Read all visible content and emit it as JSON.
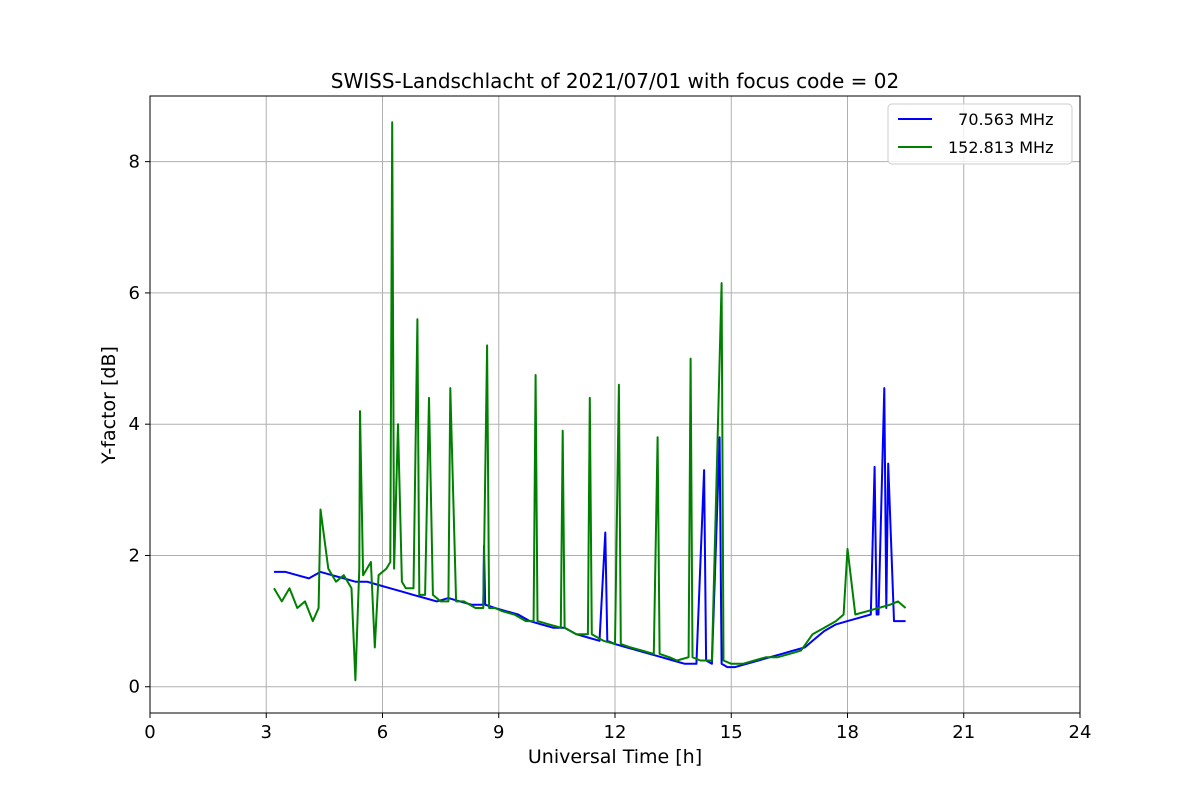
{
  "chart_data": {
    "type": "line",
    "title": "SWISS-Landschlacht of 2021/07/01 with focus code = 02",
    "xlabel": "Universal Time [h]",
    "ylabel": "Y-factor [dB]",
    "xlim": [
      0,
      24
    ],
    "ylim": [
      -0.4,
      9.0
    ],
    "xticks": [
      0,
      3,
      6,
      9,
      12,
      15,
      18,
      21,
      24
    ],
    "yticks": [
      0,
      2,
      4,
      6,
      8
    ],
    "grid": true,
    "legend_position": "top-right",
    "series": [
      {
        "name": "  70.563 MHz",
        "color": "#0000ff",
        "x": [
          3.2,
          3.5,
          3.8,
          4.1,
          4.4,
          4.7,
          5.0,
          5.3,
          5.6,
          5.9,
          6.2,
          6.5,
          6.8,
          7.1,
          7.4,
          7.7,
          8.0,
          8.3,
          8.6,
          8.62,
          8.65,
          8.9,
          9.2,
          9.5,
          9.8,
          10.1,
          10.4,
          10.7,
          11.0,
          11.3,
          11.6,
          11.75,
          11.8,
          12.0,
          12.3,
          12.6,
          12.9,
          13.2,
          13.5,
          13.8,
          14.1,
          14.3,
          14.35,
          14.5,
          14.7,
          14.75,
          14.9,
          15.1,
          15.4,
          15.7,
          16.0,
          16.3,
          16.6,
          16.9,
          17.1,
          17.4,
          17.7,
          18.0,
          18.3,
          18.6,
          18.7,
          18.75,
          18.8,
          18.95,
          19.0,
          19.05,
          19.2,
          19.5
        ],
        "values": [
          1.75,
          1.75,
          1.7,
          1.65,
          1.75,
          1.7,
          1.65,
          1.6,
          1.6,
          1.55,
          1.5,
          1.45,
          1.4,
          1.35,
          1.3,
          1.35,
          1.3,
          1.25,
          1.25,
          2.15,
          1.25,
          1.2,
          1.15,
          1.1,
          1.0,
          0.95,
          0.9,
          0.9,
          0.8,
          0.75,
          0.7,
          2.35,
          0.7,
          0.65,
          0.6,
          0.55,
          0.5,
          0.45,
          0.4,
          0.35,
          0.35,
          3.3,
          0.4,
          0.35,
          3.8,
          0.35,
          0.3,
          0.3,
          0.35,
          0.4,
          0.45,
          0.5,
          0.55,
          0.6,
          0.7,
          0.85,
          0.95,
          1.0,
          1.05,
          1.1,
          3.35,
          1.1,
          1.1,
          4.55,
          1.2,
          3.4,
          1.0,
          1.0
        ]
      },
      {
        "name": "152.813 MHz",
        "color": "#008000",
        "x": [
          3.2,
          3.4,
          3.6,
          3.8,
          4.0,
          4.2,
          4.35,
          4.4,
          4.6,
          4.8,
          5.0,
          5.2,
          5.3,
          5.4,
          5.42,
          5.5,
          5.7,
          5.8,
          5.9,
          6.1,
          6.2,
          6.25,
          6.3,
          6.4,
          6.5,
          6.6,
          6.8,
          6.9,
          6.95,
          7.1,
          7.2,
          7.3,
          7.4,
          7.5,
          7.7,
          7.75,
          7.9,
          8.1,
          8.4,
          8.6,
          8.7,
          8.75,
          8.9,
          9.1,
          9.4,
          9.7,
          9.9,
          9.95,
          10.0,
          10.3,
          10.6,
          10.65,
          10.7,
          11.0,
          11.3,
          11.35,
          11.4,
          11.7,
          12.0,
          12.1,
          12.15,
          12.4,
          12.7,
          13.0,
          13.1,
          13.15,
          13.4,
          13.6,
          13.9,
          13.95,
          14.0,
          14.2,
          14.5,
          14.75,
          14.8,
          15.0,
          15.3,
          15.6,
          15.9,
          16.2,
          16.5,
          16.8,
          17.1,
          17.4,
          17.7,
          17.9,
          18.0,
          18.2,
          18.5,
          18.8,
          19.1,
          19.3,
          19.5
        ],
        "values": [
          1.5,
          1.3,
          1.5,
          1.2,
          1.3,
          1.0,
          1.2,
          2.7,
          1.8,
          1.6,
          1.7,
          1.5,
          0.1,
          1.8,
          4.2,
          1.7,
          1.9,
          0.6,
          1.7,
          1.8,
          1.9,
          8.6,
          1.8,
          4.0,
          1.6,
          1.5,
          1.5,
          5.6,
          1.4,
          1.4,
          4.4,
          1.4,
          1.35,
          1.3,
          1.3,
          4.55,
          1.3,
          1.3,
          1.2,
          1.2,
          5.2,
          1.2,
          1.2,
          1.15,
          1.1,
          1.0,
          1.0,
          4.75,
          1.0,
          0.95,
          0.9,
          3.9,
          0.9,
          0.8,
          0.8,
          4.4,
          0.8,
          0.7,
          0.65,
          4.6,
          0.65,
          0.6,
          0.55,
          0.5,
          3.8,
          0.5,
          0.45,
          0.4,
          0.45,
          5.0,
          0.45,
          0.4,
          0.4,
          6.15,
          0.4,
          0.35,
          0.35,
          0.4,
          0.45,
          0.45,
          0.5,
          0.55,
          0.8,
          0.9,
          1.0,
          1.1,
          2.1,
          1.1,
          1.15,
          1.2,
          1.25,
          1.3,
          1.2
        ]
      }
    ]
  }
}
